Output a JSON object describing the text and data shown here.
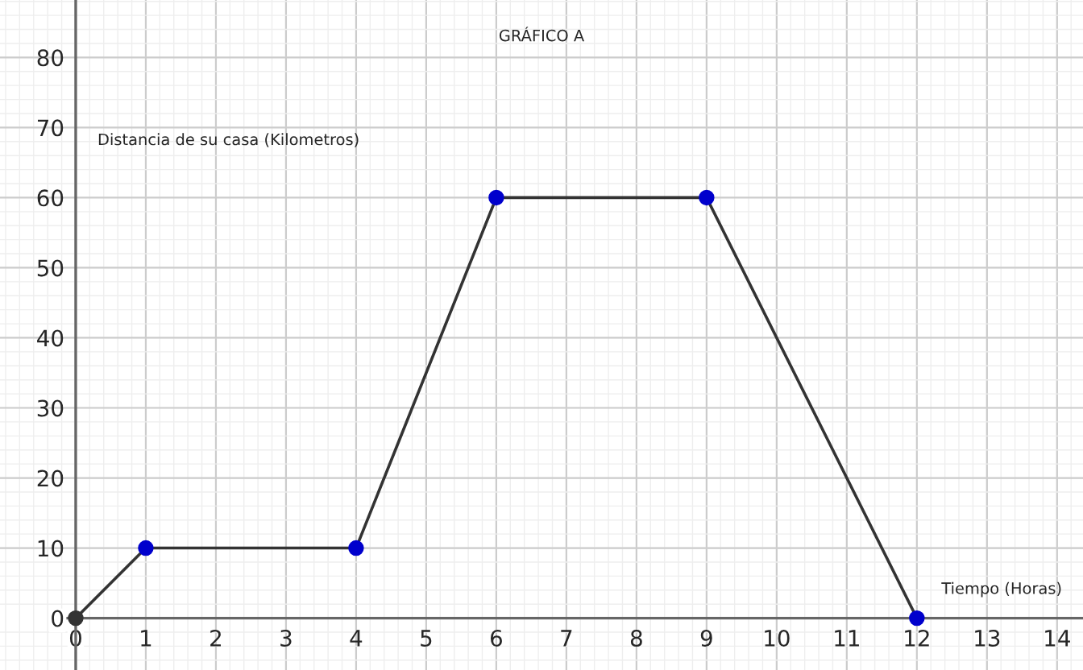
{
  "chart_data": {
    "type": "line",
    "title": "GRÁFICO A",
    "xlabel": "Tiempo (Horas)",
    "ylabel": "Distancia de su casa (Kilometros)",
    "x": [
      0,
      1,
      4,
      6,
      9,
      12
    ],
    "series": [
      {
        "type": "line",
        "color": "#333333",
        "values": [
          0,
          10,
          10,
          60,
          60,
          0
        ]
      },
      {
        "type": "scatter",
        "marker": "circle",
        "color": "#0000cc",
        "x": [
          1,
          4,
          6,
          9,
          12
        ],
        "values": [
          10,
          10,
          60,
          60,
          0
        ]
      },
      {
        "type": "scatter",
        "marker": "circle",
        "color": "#333333",
        "x": [
          0
        ],
        "values": [
          0
        ]
      }
    ],
    "xlim": [
      -1.08,
      14.37
    ],
    "ylim": [
      -7.4,
      88.2
    ],
    "xticks": [
      0,
      1,
      2,
      3,
      4,
      5,
      6,
      7,
      8,
      9,
      10,
      11,
      12,
      13,
      14
    ],
    "yticks": [
      0,
      10,
      20,
      30,
      40,
      50,
      60,
      70,
      80
    ],
    "grid": true
  }
}
